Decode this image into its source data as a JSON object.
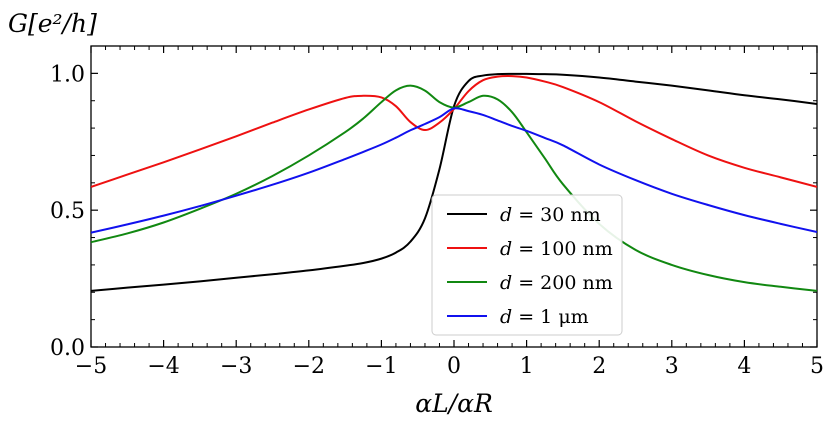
{
  "chart_data": {
    "type": "line",
    "title": "",
    "xlabel": "αL/αR",
    "ylabel": "G[e²/h]",
    "xlim": [
      -5,
      5
    ],
    "ylim": [
      0,
      1.1
    ],
    "xticks": [
      -5,
      -4,
      -3,
      -2,
      -1,
      0,
      1,
      2,
      3,
      4,
      5
    ],
    "xtick_labels": [
      "−5",
      "−4",
      "−3",
      "−2",
      "−1",
      "0",
      "1",
      "2",
      "3",
      "4",
      "5"
    ],
    "yticks": [
      0,
      0.5,
      1.0
    ],
    "ytick_labels": [
      "0.0",
      "0.5",
      "1.0"
    ],
    "grid": false,
    "legend_position": "lower-center",
    "x": [
      -5,
      -4.5,
      -4,
      -3.5,
      -3,
      -2.5,
      -2,
      -1.5,
      -1.25,
      -1,
      -0.8,
      -0.6,
      -0.4,
      -0.2,
      0,
      0.2,
      0.4,
      0.6,
      0.8,
      1,
      1.25,
      1.5,
      2,
      2.5,
      3,
      3.5,
      4,
      4.5,
      5
    ],
    "series": [
      {
        "name": "d = 30 nm",
        "color": "#000000",
        "values": [
          0.205,
          0.217,
          0.228,
          0.24,
          0.253,
          0.266,
          0.28,
          0.297,
          0.307,
          0.323,
          0.345,
          0.385,
          0.47,
          0.65,
          0.88,
          0.972,
          0.992,
          0.997,
          0.998,
          0.998,
          0.997,
          0.995,
          0.985,
          0.97,
          0.955,
          0.938,
          0.92,
          0.905,
          0.888
        ]
      },
      {
        "name": "d = 100 nm",
        "color": "#ee1111",
        "values": [
          0.585,
          0.63,
          0.675,
          0.722,
          0.77,
          0.82,
          0.868,
          0.91,
          0.918,
          0.912,
          0.88,
          0.822,
          0.793,
          0.82,
          0.87,
          0.935,
          0.975,
          0.988,
          0.99,
          0.985,
          0.97,
          0.95,
          0.895,
          0.825,
          0.76,
          0.7,
          0.655,
          0.62,
          0.585
        ]
      },
      {
        "name": "d = 200 nm",
        "color": "#118811",
        "values": [
          0.383,
          0.415,
          0.455,
          0.505,
          0.56,
          0.625,
          0.7,
          0.785,
          0.835,
          0.895,
          0.938,
          0.955,
          0.937,
          0.895,
          0.875,
          0.895,
          0.918,
          0.905,
          0.858,
          0.785,
          0.69,
          0.595,
          0.45,
          0.355,
          0.3,
          0.263,
          0.237,
          0.22,
          0.205
        ]
      },
      {
        "name": "d = 1 μm",
        "color": "#1111ee",
        "values": [
          0.418,
          0.448,
          0.48,
          0.515,
          0.553,
          0.593,
          0.637,
          0.687,
          0.713,
          0.74,
          0.765,
          0.792,
          0.815,
          0.84,
          0.872,
          0.862,
          0.848,
          0.828,
          0.808,
          0.79,
          0.764,
          0.737,
          0.667,
          0.61,
          0.56,
          0.519,
          0.482,
          0.45,
          0.42
        ]
      }
    ],
    "legend_labels": [
      {
        "math": "d",
        "eq": " = 30 ",
        "unit": "nm"
      },
      {
        "math": "d",
        "eq": " = 100 ",
        "unit": "nm"
      },
      {
        "math": "d",
        "eq": " = 200 ",
        "unit": "nm"
      },
      {
        "math": "d",
        "eq": " = 1 ",
        "unit": "μm"
      }
    ]
  }
}
